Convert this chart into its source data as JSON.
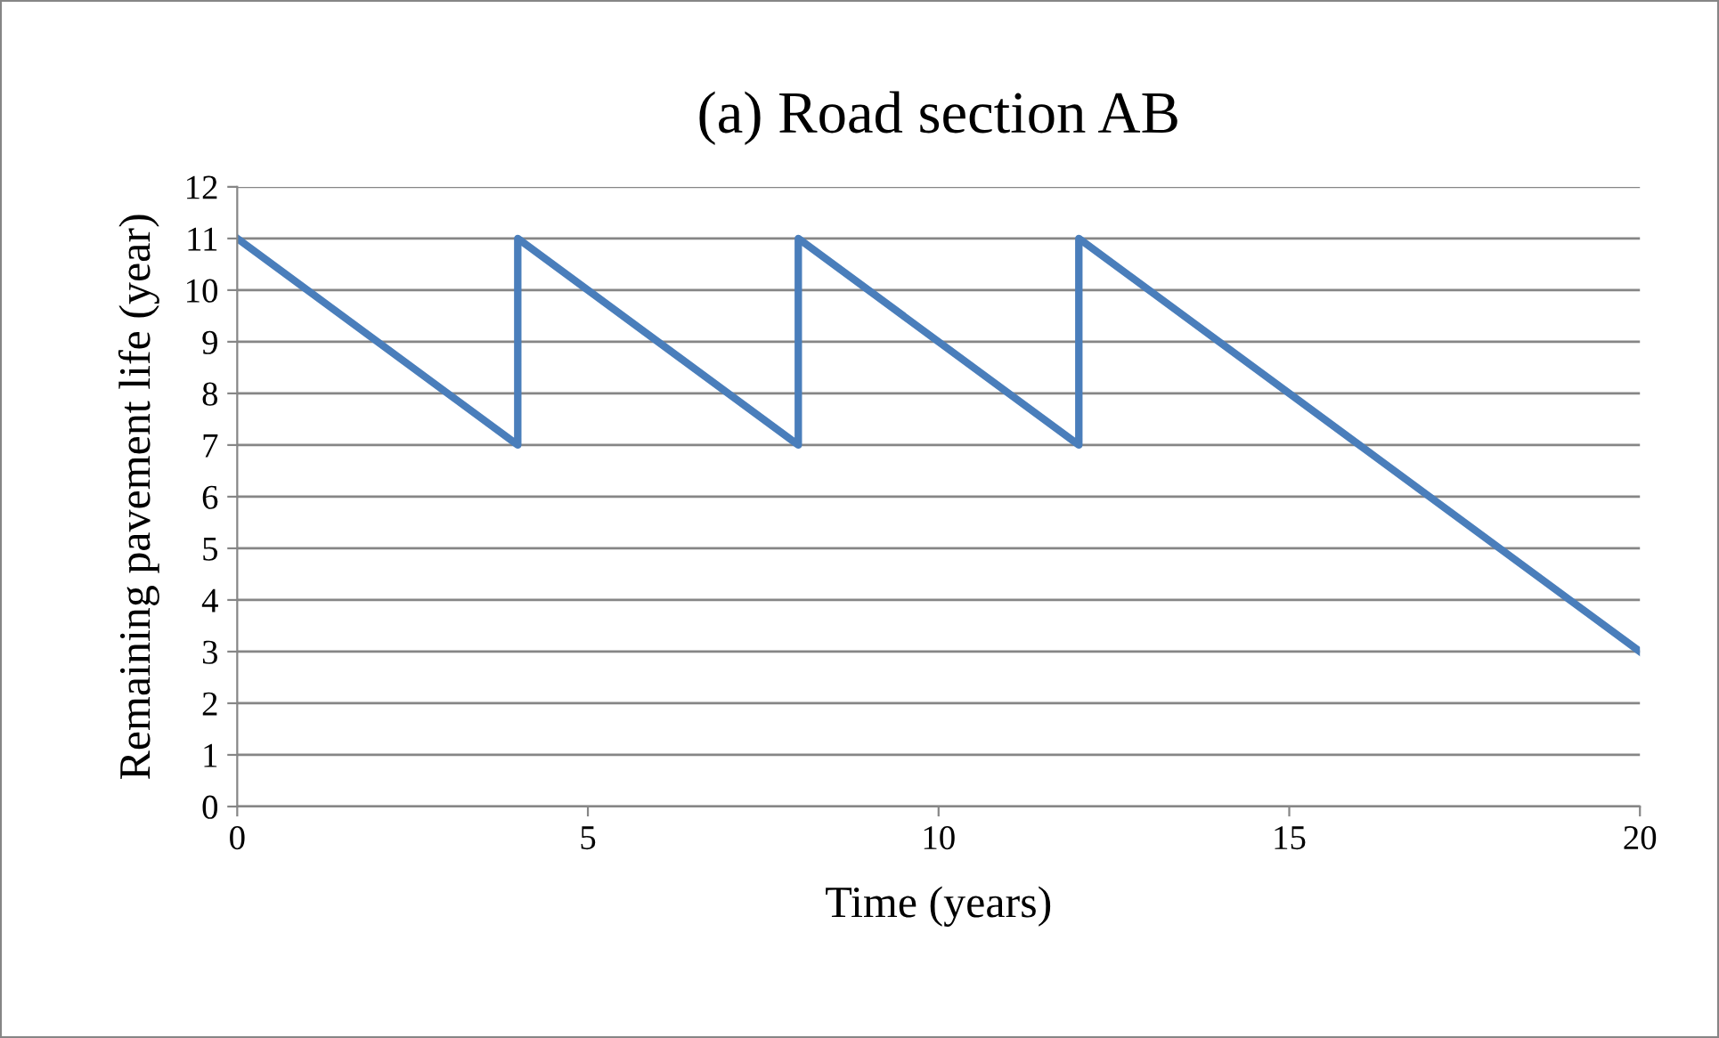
{
  "chart_data": {
    "type": "line",
    "title": "(a) Road section AB",
    "xlabel": "Time (years)",
    "ylabel": "Remaining pavement life (year)",
    "x": [
      0,
      4,
      4,
      8,
      8,
      12,
      12,
      20
    ],
    "series": [
      {
        "color": "#4a7ebb",
        "values": [
          11,
          7,
          11,
          7,
          11,
          7,
          11,
          3
        ]
      }
    ],
    "xlim": [
      0,
      20
    ],
    "xticks": [
      0,
      5,
      10,
      15,
      20
    ],
    "ylim": [
      0,
      12
    ],
    "yticks": [
      0,
      1,
      2,
      3,
      4,
      5,
      6,
      7,
      8,
      9,
      10,
      11,
      12
    ],
    "grid": "y",
    "marker": "none",
    "line_style": "solid"
  }
}
